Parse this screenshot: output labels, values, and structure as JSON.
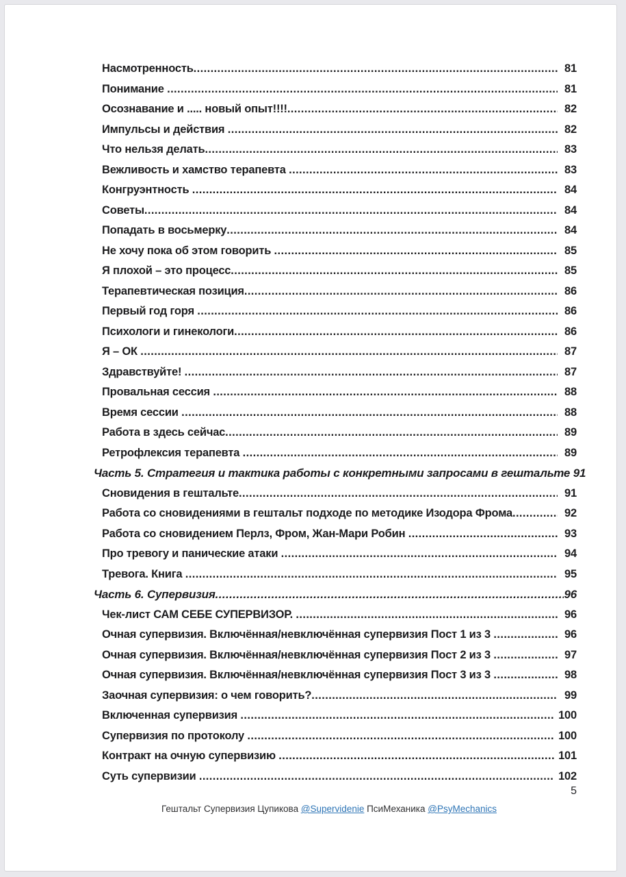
{
  "document": {
    "page_number": "5",
    "text_color": "#1c1c1e",
    "footer": {
      "prefix": "Гештальт Супервизия Цупикова ",
      "link_supervidenie": "@Supervidenie",
      "middle": " ПсиМеханика ",
      "link_psymechanics": "@PsyMechanics",
      "link_color": "#2e75b6"
    },
    "toc_entries": [
      {
        "text": "Насмотренность",
        "page": "81",
        "type": "item"
      },
      {
        "text": "Понимание ",
        "page": "81",
        "type": "item"
      },
      {
        "text": "Осознавание и ..... новый опыт!!!!",
        "page": "82",
        "type": "item"
      },
      {
        "text": "Импульсы и действия ",
        "page": "82",
        "type": "item"
      },
      {
        "text": "Что нельзя делать",
        "page": "83",
        "type": "item"
      },
      {
        "text": "Вежливость и хамство терапевта ",
        "page": "83",
        "type": "item"
      },
      {
        "text": "Конгруэнтность ",
        "page": "84",
        "type": "item"
      },
      {
        "text": "Советы",
        "page": "84",
        "type": "item"
      },
      {
        "text": "Попадать в восьмерку",
        "page": "84",
        "type": "item"
      },
      {
        "text": "Не хочу пока об этом говорить ",
        "page": "85",
        "type": "item"
      },
      {
        "text": "Я плохой – это процесс",
        "page": "85",
        "type": "item"
      },
      {
        "text": "Терапевтическая позиция",
        "page": "86",
        "type": "item"
      },
      {
        "text": "Первый год горя ",
        "page": "86",
        "type": "item"
      },
      {
        "text": "Психологи и гинекологи",
        "page": "86",
        "type": "item"
      },
      {
        "text": "Я – ОК ",
        "page": "87",
        "type": "item"
      },
      {
        "text": "Здравствуйте! ",
        "page": "87",
        "type": "item"
      },
      {
        "text": "Провальная сессия ",
        "page": "88",
        "type": "item"
      },
      {
        "text": "Время сессии ",
        "page": "88",
        "type": "item"
      },
      {
        "text": "Работа в здесь сейчас",
        "page": "89",
        "type": "item"
      },
      {
        "text": "Ретрофлексия терапевта ",
        "page": "89",
        "type": "item"
      },
      {
        "text": "Часть 5. Стратегия и тактика работы с конкретными запросами в гештальте ",
        "page": "91",
        "type": "part"
      },
      {
        "text": "Сновидения в гештальте",
        "page": "91",
        "type": "item"
      },
      {
        "text": "Работа со сновидениями в гештальт подходе по методике Изодора Фрома",
        "page": "92",
        "type": "item"
      },
      {
        "text": "Работа со сновидением Перлз, Фром, Жан-Мари Робин ",
        "page": "93",
        "type": "item"
      },
      {
        "text": "Про тревогу и панические атаки ",
        "page": "94",
        "type": "item"
      },
      {
        "text": "Тревога. Книга ",
        "page": "95",
        "type": "item"
      },
      {
        "text": "Часть 6. Супервизия",
        "page": "96",
        "type": "part"
      },
      {
        "text": "Чек-лист САМ СЕБЕ СУПЕРВИЗОР. ",
        "page": "96",
        "type": "item"
      },
      {
        "text": "Очная супервизия. Включённая/невключённая супервизия Пост 1 из 3 ",
        "page": "96",
        "type": "item"
      },
      {
        "text": "Очная супервизия. Включённая/невключённая супервизия Пост 2 из 3 ",
        "page": "97",
        "type": "item"
      },
      {
        "text": "Очная супервизия. Включённая/невключённая супервизия Пост 3 из 3 ",
        "page": "98",
        "type": "item"
      },
      {
        "text": "Заочная супервизия: о чем говорить?",
        "page": "99",
        "type": "item"
      },
      {
        "text": "Включенная супервизия ",
        "page": "100",
        "type": "item"
      },
      {
        "text": "Супервизия по протоколу ",
        "page": "100",
        "type": "item"
      },
      {
        "text": "Контракт на очную супервизию ",
        "page": "101",
        "type": "item"
      },
      {
        "text": "Суть супервизии ",
        "page": "102",
        "type": "item"
      }
    ]
  }
}
